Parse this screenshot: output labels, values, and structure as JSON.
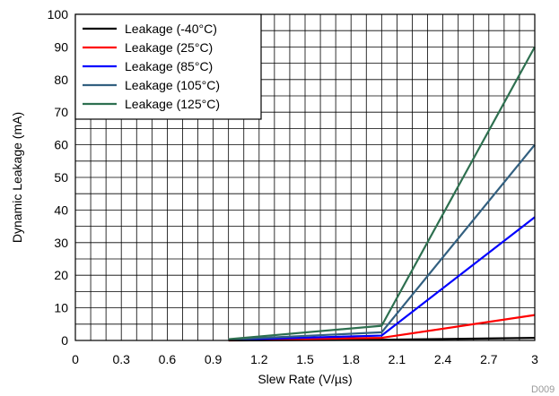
{
  "chart_data": {
    "type": "line",
    "title": "",
    "xlabel": "Slew Rate (V/µs)",
    "ylabel": "Dynamic Leakage (mA)",
    "xlim": [
      0,
      3
    ],
    "ylim": [
      0,
      100
    ],
    "xticks": [
      "0",
      "0.3",
      "0.6",
      "0.9",
      "1.2",
      "1.5",
      "1.8",
      "2.1",
      "2.4",
      "2.7",
      "3"
    ],
    "yticks": [
      "0",
      "10",
      "20",
      "30",
      "40",
      "50",
      "60",
      "70",
      "80",
      "90",
      "100"
    ],
    "grid": true,
    "legend_position": "top-left",
    "series": [
      {
        "name": "Leakage (-40°C)",
        "color": "#000000",
        "x": [
          1.0,
          2.0,
          3.0
        ],
        "y": [
          0.0,
          0.2,
          0.8
        ]
      },
      {
        "name": "Leakage (25°C)",
        "color": "#ff0000",
        "x": [
          1.0,
          2.0,
          3.0
        ],
        "y": [
          0.1,
          0.8,
          7.8
        ]
      },
      {
        "name": "Leakage (85°C)",
        "color": "#0000ff",
        "x": [
          1.0,
          2.0,
          3.0
        ],
        "y": [
          0.2,
          1.5,
          37.8
        ]
      },
      {
        "name": "Leakage (105°C)",
        "color": "#336080",
        "x": [
          1.0,
          2.0,
          3.0
        ],
        "y": [
          0.3,
          2.5,
          60.0
        ]
      },
      {
        "name": "Leakage (125°C)",
        "color": "#2e7050",
        "x": [
          1.0,
          2.0,
          3.0
        ],
        "y": [
          0.4,
          4.5,
          90.0
        ]
      }
    ],
    "figure_code": "D009"
  }
}
